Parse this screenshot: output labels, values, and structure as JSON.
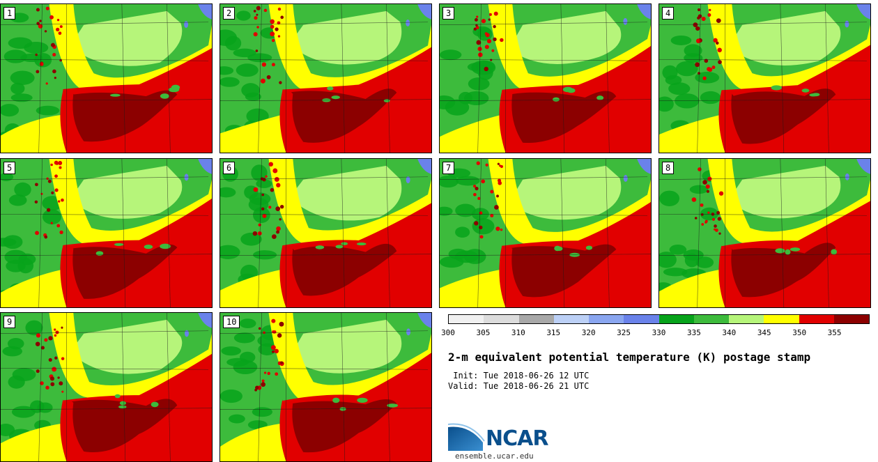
{
  "title": "2-m equivalent potential temperature (K) postage stamp",
  "init": " Init: Tue 2018-06-26 12 UTC",
  "valid": "Valid: Tue 2018-06-26 21 UTC",
  "site": "ensemble.ucar.edu",
  "logo_text": "NCAR",
  "members": [
    "1",
    "2",
    "3",
    "4",
    "5",
    "6",
    "7",
    "8",
    "9",
    "10"
  ],
  "colorbar": {
    "ticks": [
      "300",
      "305",
      "310",
      "315",
      "320",
      "325",
      "330",
      "335",
      "340",
      "345",
      "350",
      "355"
    ],
    "colors": [
      "#f0f0f0",
      "#dcdcdc",
      "#a8a8a8",
      "#bcd0f6",
      "#8aa6f0",
      "#6a82ea",
      "#07a31b",
      "#3dbb3c",
      "#b6f57a",
      "#ffff00",
      "#e10000",
      "#8c0000"
    ]
  }
}
